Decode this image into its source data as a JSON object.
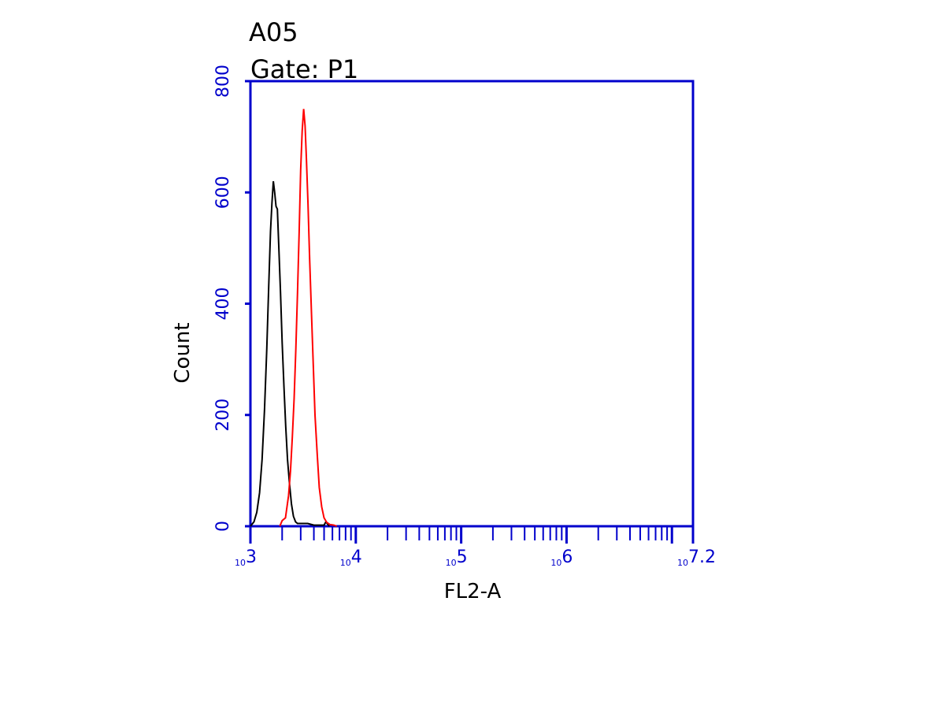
{
  "chart_data": {
    "type": "line",
    "title": "A05",
    "subtitle": "Gate: P1",
    "xlabel": "FL2-A",
    "ylabel": "Count",
    "x_scale": "log10",
    "xlim": [
      1000,
      15848932
    ],
    "ylim": [
      0,
      800
    ],
    "grid": false,
    "legend": "none",
    "y_ticks": [
      "0",
      "200",
      "400",
      "600",
      "800"
    ],
    "x_ticks": [
      {
        "value": 1000,
        "base": "10",
        "exponent": "3"
      },
      {
        "value": 10000,
        "base": "10",
        "exponent": "4"
      },
      {
        "value": 100000,
        "base": "10",
        "exponent": "5"
      },
      {
        "value": 1000000,
        "base": "10",
        "exponent": "6"
      },
      {
        "value": 15848932,
        "base": "10",
        "exponent": "7.2"
      }
    ],
    "series": [
      {
        "color": "#000000",
        "points": [
          [
            1000,
            0
          ],
          [
            1080,
            8
          ],
          [
            1150,
            25
          ],
          [
            1220,
            60
          ],
          [
            1290,
            120
          ],
          [
            1360,
            210
          ],
          [
            1430,
            320
          ],
          [
            1490,
            430
          ],
          [
            1550,
            530
          ],
          [
            1600,
            580
          ],
          [
            1650,
            620
          ],
          [
            1700,
            600
          ],
          [
            1750,
            575
          ],
          [
            1800,
            570
          ],
          [
            1860,
            500
          ],
          [
            1930,
            420
          ],
          [
            2000,
            330
          ],
          [
            2080,
            250
          ],
          [
            2160,
            180
          ],
          [
            2250,
            120
          ],
          [
            2350,
            75
          ],
          [
            2450,
            40
          ],
          [
            2560,
            18
          ],
          [
            2680,
            8
          ],
          [
            2800,
            5
          ],
          [
            3200,
            5
          ],
          [
            3500,
            5
          ],
          [
            4000,
            2
          ],
          [
            5000,
            2
          ],
          [
            5200,
            8
          ],
          [
            5600,
            0
          ]
        ]
      },
      {
        "color": "#ff0000",
        "points": [
          [
            1900,
            0
          ],
          [
            2000,
            10
          ],
          [
            2150,
            15
          ],
          [
            2300,
            55
          ],
          [
            2400,
            100
          ],
          [
            2500,
            160
          ],
          [
            2600,
            230
          ],
          [
            2700,
            320
          ],
          [
            2800,
            420
          ],
          [
            2900,
            530
          ],
          [
            3000,
            640
          ],
          [
            3100,
            710
          ],
          [
            3200,
            750
          ],
          [
            3300,
            720
          ],
          [
            3400,
            660
          ],
          [
            3520,
            580
          ],
          [
            3650,
            480
          ],
          [
            3800,
            380
          ],
          [
            3950,
            290
          ],
          [
            4100,
            200
          ],
          [
            4300,
            130
          ],
          [
            4500,
            70
          ],
          [
            4750,
            35
          ],
          [
            5000,
            15
          ],
          [
            5300,
            7
          ],
          [
            5700,
            3
          ],
          [
            6200,
            2
          ],
          [
            6600,
            0
          ]
        ]
      }
    ]
  }
}
